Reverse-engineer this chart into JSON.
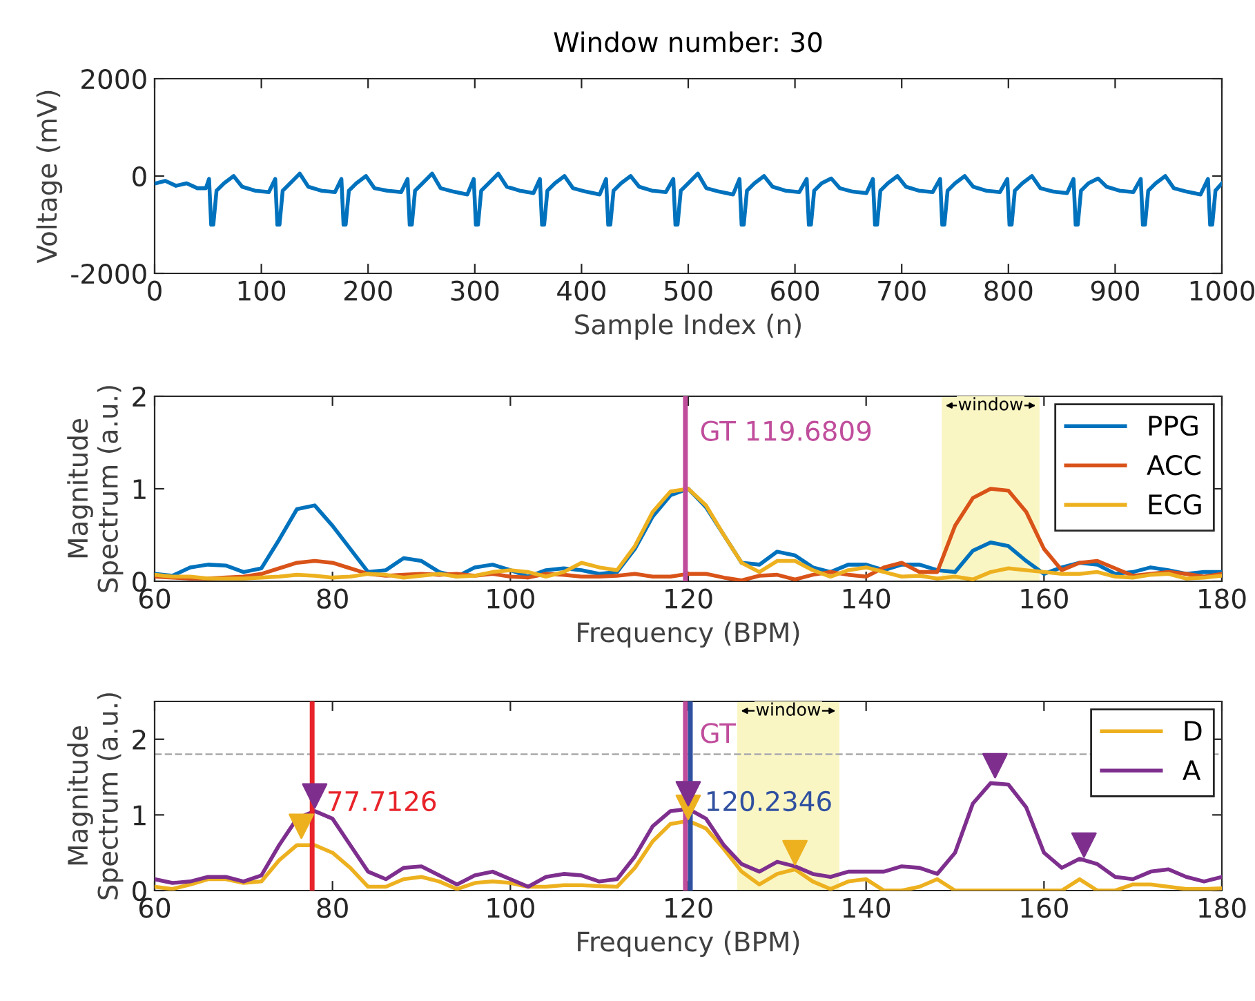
{
  "chart_data": [
    {
      "type": "line",
      "title": "Window number: 30",
      "xlabel": "Sample Index (n)",
      "ylabel": "Voltage (mV)",
      "xlim": [
        0,
        1000
      ],
      "xticks": [
        0,
        100,
        200,
        300,
        400,
        500,
        600,
        700,
        800,
        900,
        1000
      ],
      "ylim": [
        -2000,
        2000
      ],
      "yticks": [
        -2000,
        0,
        2000
      ],
      "grid": false,
      "series": [
        {
          "color": "#0072bd",
          "x": [
            1,
            10,
            20,
            30,
            40,
            48,
            51,
            53,
            55,
            58,
            65,
            74,
            82,
            94,
            107,
            113,
            115,
            117,
            120,
            127,
            136,
            144,
            156,
            169,
            175,
            177,
            179,
            182,
            189,
            198,
            206,
            218,
            231,
            237,
            239,
            241,
            244,
            251,
            260,
            268,
            280,
            293,
            299,
            301,
            303,
            306,
            313,
            322,
            330,
            342,
            355,
            361,
            363,
            365,
            368,
            375,
            384,
            392,
            404,
            417,
            423,
            425,
            427,
            430,
            437,
            446,
            454,
            466,
            479,
            486,
            488,
            490,
            493,
            500,
            509,
            517,
            529,
            542,
            548,
            550,
            552,
            555,
            562,
            571,
            579,
            591,
            604,
            611,
            613,
            615,
            618,
            625,
            634,
            642,
            654,
            667,
            673,
            675,
            677,
            680,
            687,
            696,
            704,
            716,
            729,
            736,
            738,
            740,
            743,
            750,
            759,
            767,
            779,
            792,
            799,
            801,
            803,
            806,
            813,
            822,
            830,
            842,
            855,
            861,
            863,
            865,
            868,
            875,
            884,
            892,
            904,
            917,
            924,
            926,
            928,
            931,
            938,
            947,
            955,
            967,
            980,
            987,
            989,
            991,
            994,
            1000
          ],
          "values": [
            -150,
            -100,
            -200,
            -150,
            -250,
            -250,
            -60,
            -1000,
            -1000,
            -300,
            -150,
            0,
            -220,
            -300,
            -330,
            -60,
            -1000,
            -1000,
            -300,
            -150,
            50,
            -220,
            -300,
            -330,
            -60,
            -1000,
            -1000,
            -300,
            -150,
            0,
            -250,
            -300,
            -330,
            -60,
            -1000,
            -1000,
            -300,
            -150,
            50,
            -250,
            -320,
            -380,
            -60,
            -1000,
            -1000,
            -300,
            -150,
            50,
            -220,
            -300,
            -350,
            -60,
            -1000,
            -1000,
            -300,
            -150,
            0,
            -250,
            -320,
            -380,
            -60,
            -1000,
            -1000,
            -300,
            -150,
            0,
            -220,
            -300,
            -330,
            -60,
            -1000,
            -1000,
            -300,
            -150,
            50,
            -250,
            -320,
            -380,
            -60,
            -1000,
            -1000,
            -300,
            -150,
            0,
            -220,
            -300,
            -330,
            -60,
            -1000,
            -1000,
            -300,
            -150,
            -50,
            -250,
            -320,
            -350,
            -60,
            -1000,
            -1000,
            -300,
            -150,
            0,
            -220,
            -300,
            -330,
            -60,
            -1000,
            -1000,
            -300,
            -150,
            0,
            -220,
            -300,
            -330,
            -60,
            -1000,
            -1000,
            -300,
            -150,
            0,
            -250,
            -320,
            -350,
            -60,
            -1000,
            -1000,
            -300,
            -150,
            -50,
            -220,
            -300,
            -330,
            -60,
            -1000,
            -1000,
            -300,
            -150,
            0,
            -250,
            -320,
            -380,
            -60,
            -1000,
            -1000,
            -300,
            -150
          ]
        }
      ]
    },
    {
      "type": "line",
      "xlabel": "Frequency (BPM)",
      "ylabel": "Magnitude\nSpectrum (a.u.)",
      "xlim": [
        60,
        180
      ],
      "xticks": [
        60,
        80,
        100,
        120,
        140,
        160,
        180
      ],
      "ylim": [
        0,
        2
      ],
      "yticks": [
        0,
        1,
        2
      ],
      "grid": false,
      "legend": "top right",
      "x": [
        60,
        62,
        64,
        66,
        68,
        70,
        72,
        74,
        76,
        78,
        80,
        82,
        84,
        86,
        88,
        90,
        92,
        94,
        96,
        98,
        100,
        102,
        104,
        106,
        108,
        110,
        112,
        114,
        116,
        118,
        120,
        122,
        124,
        126,
        128,
        130,
        132,
        134,
        136,
        138,
        140,
        142,
        144,
        146,
        148,
        150,
        152,
        154,
        156,
        158,
        160,
        162,
        164,
        166,
        168,
        170,
        172,
        174,
        176,
        178,
        180
      ],
      "series": [
        {
          "name": "PPG",
          "color": "#0072bd",
          "values": [
            0.08,
            0.06,
            0.15,
            0.18,
            0.17,
            0.1,
            0.14,
            0.45,
            0.78,
            0.82,
            0.6,
            0.35,
            0.1,
            0.12,
            0.25,
            0.22,
            0.1,
            0.05,
            0.15,
            0.18,
            0.12,
            0.05,
            0.12,
            0.14,
            0.12,
            0.08,
            0.1,
            0.35,
            0.7,
            0.93,
            1.0,
            0.8,
            0.5,
            0.2,
            0.18,
            0.32,
            0.28,
            0.15,
            0.1,
            0.18,
            0.18,
            0.12,
            0.18,
            0.18,
            0.12,
            0.1,
            0.33,
            0.42,
            0.38,
            0.22,
            0.08,
            0.15,
            0.2,
            0.18,
            0.08,
            0.1,
            0.15,
            0.12,
            0.08,
            0.1,
            0.1
          ]
        },
        {
          "name": "ACC",
          "color": "#d95319",
          "values": [
            0.05,
            0.04,
            0.03,
            0.03,
            0.04,
            0.05,
            0.08,
            0.14,
            0.2,
            0.22,
            0.2,
            0.14,
            0.08,
            0.06,
            0.07,
            0.08,
            0.07,
            0.08,
            0.06,
            0.08,
            0.05,
            0.04,
            0.08,
            0.07,
            0.05,
            0.05,
            0.06,
            0.08,
            0.05,
            0.05,
            0.08,
            0.08,
            0.04,
            0.01,
            0.06,
            0.07,
            0.02,
            0.07,
            0.1,
            0.07,
            0.05,
            0.15,
            0.2,
            0.1,
            0.1,
            0.6,
            0.9,
            1.0,
            0.98,
            0.75,
            0.35,
            0.12,
            0.2,
            0.22,
            0.14,
            0.06,
            0.08,
            0.1,
            0.08,
            0.05,
            0.08
          ]
        },
        {
          "name": "ECG",
          "color": "#edb120",
          "values": [
            0.07,
            0.05,
            0.05,
            0.03,
            0.03,
            0.03,
            0.04,
            0.05,
            0.07,
            0.06,
            0.04,
            0.05,
            0.08,
            0.07,
            0.04,
            0.06,
            0.08,
            0.05,
            0.06,
            0.1,
            0.12,
            0.1,
            0.05,
            0.1,
            0.2,
            0.15,
            0.12,
            0.38,
            0.75,
            0.97,
            1.0,
            0.82,
            0.5,
            0.2,
            0.1,
            0.22,
            0.22,
            0.12,
            0.05,
            0.12,
            0.15,
            0.1,
            0.05,
            0.06,
            0.03,
            0.05,
            0.02,
            0.1,
            0.14,
            0.12,
            0.1,
            0.08,
            0.08,
            0.1,
            0.05,
            0.04,
            0.07,
            0.08,
            0.03,
            0.04,
            0.06
          ]
        }
      ],
      "ref_lines": [
        {
          "axis": "x",
          "value": 119.6809,
          "label": "GT 119.6809",
          "color": "#c04d9c"
        }
      ],
      "bands": [
        {
          "axis": "x",
          "from": 148.5,
          "to": 159.5,
          "label": "window",
          "color": "#faf6c4"
        }
      ]
    },
    {
      "type": "line",
      "xlabel": "Frequency (BPM)",
      "ylabel": "Magnitude\nSpectrum (a.u.)",
      "xlim": [
        60,
        180
      ],
      "xticks": [
        60,
        80,
        100,
        120,
        140,
        160,
        180
      ],
      "ylim": [
        0,
        2.5
      ],
      "yticks": [
        0,
        1,
        2
      ],
      "grid": false,
      "legend": "top right",
      "x": [
        60,
        62,
        64,
        66,
        68,
        70,
        72,
        74,
        76,
        78,
        80,
        82,
        84,
        86,
        88,
        90,
        92,
        94,
        96,
        98,
        100,
        102,
        104,
        106,
        108,
        110,
        112,
        114,
        116,
        118,
        120,
        122,
        124,
        126,
        128,
        130,
        132,
        134,
        136,
        138,
        140,
        142,
        144,
        146,
        148,
        150,
        152,
        154,
        156,
        158,
        160,
        162,
        164,
        166,
        168,
        170,
        172,
        174,
        176,
        178,
        180
      ],
      "series": [
        {
          "name": "D",
          "color": "#edb120",
          "values": [
            0.05,
            0.02,
            0.08,
            0.15,
            0.15,
            0.1,
            0.12,
            0.4,
            0.6,
            0.6,
            0.5,
            0.3,
            0.05,
            0.05,
            0.15,
            0.18,
            0.12,
            0.02,
            0.1,
            0.12,
            0.1,
            0.05,
            0.05,
            0.07,
            0.07,
            0.06,
            0.05,
            0.3,
            0.65,
            0.88,
            0.92,
            0.82,
            0.55,
            0.25,
            0.08,
            0.22,
            0.28,
            0.12,
            0.02,
            0.12,
            0.15,
            0,
            0,
            0.05,
            0.15,
            0,
            0,
            0,
            0,
            0,
            0,
            0,
            0.15,
            0,
            0,
            0.08,
            0.08,
            0.05,
            0.02,
            0.02,
            0.03
          ]
        },
        {
          "name": "A",
          "color": "#7e2f8e",
          "values": [
            0.15,
            0.1,
            0.12,
            0.18,
            0.18,
            0.12,
            0.2,
            0.6,
            0.95,
            1.05,
            0.95,
            0.6,
            0.25,
            0.15,
            0.3,
            0.32,
            0.2,
            0.08,
            0.2,
            0.25,
            0.15,
            0.05,
            0.18,
            0.22,
            0.2,
            0.12,
            0.15,
            0.45,
            0.85,
            1.05,
            1.08,
            0.95,
            0.6,
            0.35,
            0.25,
            0.38,
            0.32,
            0.22,
            0.18,
            0.25,
            0.25,
            0.25,
            0.32,
            0.3,
            0.22,
            0.5,
            1.15,
            1.42,
            1.4,
            1.1,
            0.5,
            0.3,
            0.42,
            0.35,
            0.18,
            0.15,
            0.25,
            0.28,
            0.18,
            0.12,
            0.18
          ]
        },
        {
          "type": "scatter",
          "marker": "triangle",
          "color": "#edb120",
          "x": [
            76.5,
            120,
            132
          ],
          "values": [
            0.85,
            1.1,
            0.5
          ]
        },
        {
          "type": "scatter",
          "marker": "triangle",
          "color": "#7e2f8e",
          "x": [
            78,
            120,
            154.5,
            164.5
          ],
          "values": [
            1.25,
            1.28,
            1.65,
            0.6
          ]
        }
      ],
      "ref_lines": [
        {
          "axis": "y",
          "value": 1.8,
          "color": "#b0b0b0",
          "line_style": "dashed"
        },
        {
          "axis": "x",
          "value": 77.7126,
          "label": "77.7126",
          "color": "#e8232a"
        },
        {
          "axis": "x",
          "value": 119.6809,
          "label": "GT",
          "color": "#c04d9c"
        },
        {
          "axis": "x",
          "value": 120.2346,
          "label": "120.2346",
          "color": "#3050a0"
        }
      ],
      "bands": [
        {
          "axis": "x",
          "from": 125.5,
          "to": 137,
          "label": "window",
          "color": "#faf6c4"
        }
      ]
    }
  ]
}
